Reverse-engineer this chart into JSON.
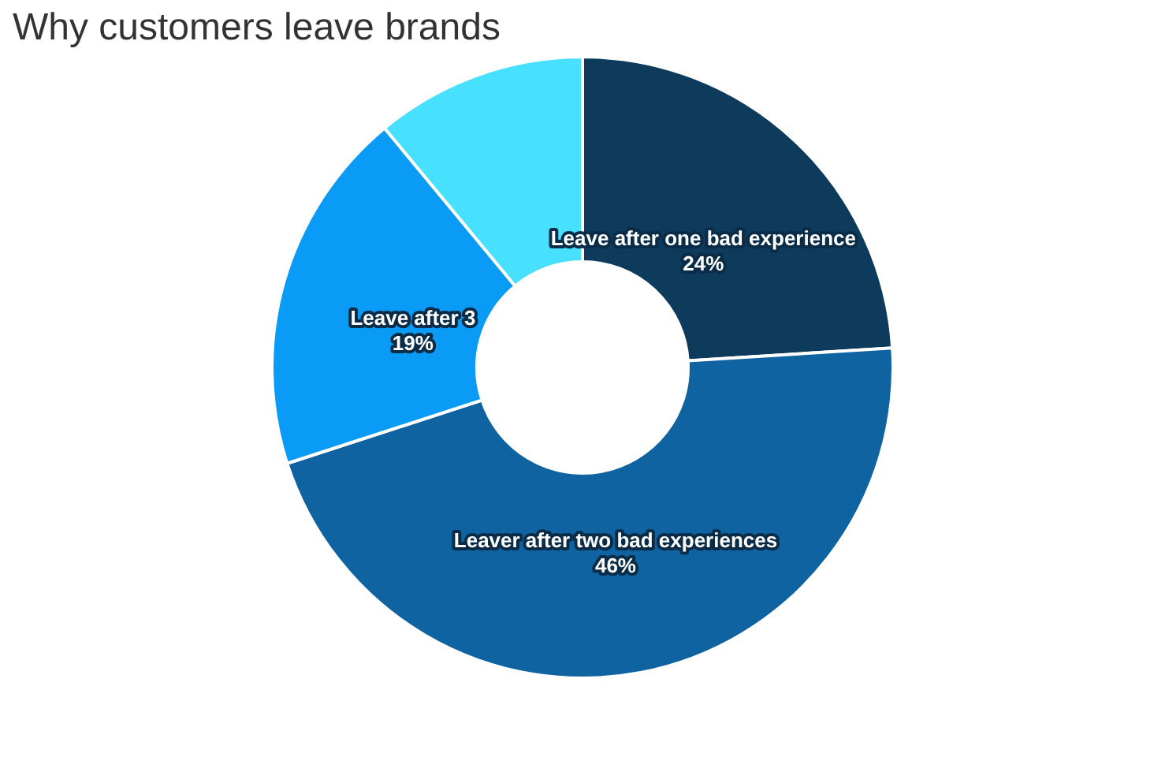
{
  "chart_data": {
    "type": "donut",
    "title": "Why customers leave brands",
    "categories": [
      "Leave after one bad experience",
      "Leaver after two bad experiences",
      "Leave after 3",
      null
    ],
    "values": [
      24,
      46,
      19,
      11
    ],
    "value_labels": [
      "24%",
      "46%",
      "19%",
      null
    ],
    "colors": [
      "#0e3a5c",
      "#0f63a0",
      "#0a9bf7",
      "#47e0ff"
    ],
    "legend": false
  }
}
